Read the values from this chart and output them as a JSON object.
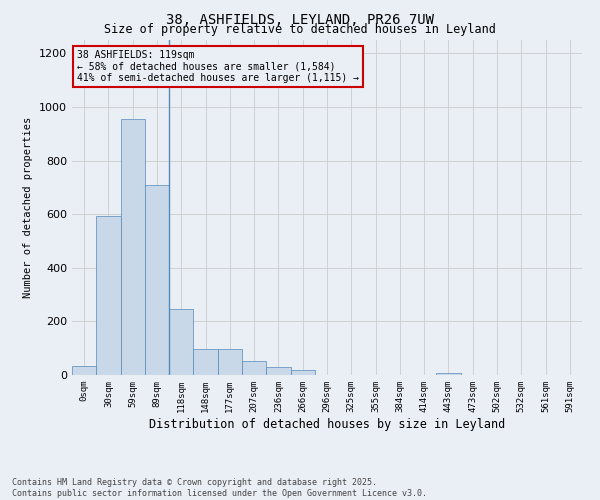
{
  "title_line1": "38, ASHFIELDS, LEYLAND, PR26 7UW",
  "title_line2": "Size of property relative to detached houses in Leyland",
  "xlabel": "Distribution of detached houses by size in Leyland",
  "ylabel": "Number of detached properties",
  "footer_line1": "Contains HM Land Registry data © Crown copyright and database right 2025.",
  "footer_line2": "Contains public sector information licensed under the Open Government Licence v3.0.",
  "bin_labels": [
    "0sqm",
    "30sqm",
    "59sqm",
    "89sqm",
    "118sqm",
    "148sqm",
    "177sqm",
    "207sqm",
    "236sqm",
    "266sqm",
    "296sqm",
    "325sqm",
    "355sqm",
    "384sqm",
    "414sqm",
    "443sqm",
    "473sqm",
    "502sqm",
    "532sqm",
    "561sqm",
    "591sqm"
  ],
  "bar_values": [
    35,
    595,
    955,
    710,
    245,
    98,
    98,
    52,
    28,
    18,
    0,
    0,
    0,
    0,
    0,
    8,
    0,
    0,
    0,
    0,
    0
  ],
  "bar_color": "#c8d8e8",
  "bar_edge_color": "#5588bb",
  "grid_color": "#cccccc",
  "bg_color": "#eaeef5",
  "annotation_line1": "38 ASHFIELDS: 119sqm",
  "annotation_line2": "← 58% of detached houses are smaller (1,584)",
  "annotation_line3": "41% of semi-detached houses are larger (1,115) →",
  "annotation_box_color": "#cc0000",
  "vline_x": 3.5,
  "vline_color": "#5588bb",
  "ylim": [
    0,
    1250
  ],
  "yticks": [
    0,
    200,
    400,
    600,
    800,
    1000,
    1200
  ]
}
